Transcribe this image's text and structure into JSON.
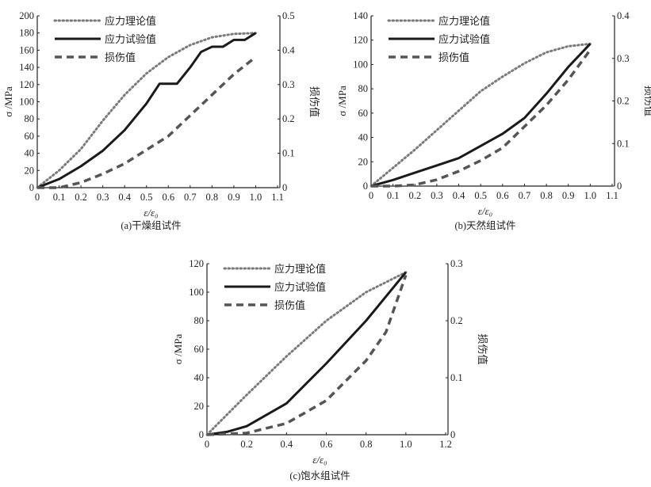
{
  "legend": {
    "theory": "应力理论值",
    "experiment": "应力试验值",
    "damage": "损伤值"
  },
  "colors": {
    "theory": "#7a7a7a",
    "experiment": "#1a1a1a",
    "damage": "#555555"
  },
  "chart_data": [
    {
      "type": "line",
      "title": "(a)干燥组试件",
      "xlabel": "ε/ε₀",
      "ylabel": "σ /MPa",
      "y2label": "损伤值",
      "xlim": [
        0,
        1.1
      ],
      "xticks": [
        "0",
        "0.1",
        "0.2",
        "0.3",
        "0.4",
        "0.5",
        "0.6",
        "0.7",
        "0.8",
        "0.9",
        "1.0",
        "1.1"
      ],
      "xstep": 0.1,
      "ylim": [
        0,
        200
      ],
      "yticks": [
        "0",
        "20",
        "40",
        "60",
        "80",
        "100",
        "120",
        "140",
        "160",
        "180",
        "200"
      ],
      "y2lim": [
        0,
        0.5
      ],
      "y2ticks": [
        "0",
        "0.1",
        "0.2",
        "0.3",
        "0.4",
        "0.5"
      ],
      "series": [
        {
          "name": "应力理论值",
          "axis": "left",
          "x": [
            0,
            0.1,
            0.2,
            0.3,
            0.4,
            0.5,
            0.6,
            0.7,
            0.8,
            0.9,
            1.0
          ],
          "y": [
            0,
            20,
            45,
            78,
            108,
            133,
            152,
            166,
            175,
            179,
            180
          ]
        },
        {
          "name": "应力试验值",
          "axis": "left",
          "x": [
            0,
            0.1,
            0.2,
            0.3,
            0.4,
            0.5,
            0.56,
            0.64,
            0.7,
            0.75,
            0.8,
            0.85,
            0.9,
            0.95,
            1.0
          ],
          "y": [
            0,
            10,
            25,
            43,
            67,
            98,
            121,
            121,
            140,
            158,
            164,
            164,
            172,
            172,
            180
          ]
        },
        {
          "name": "损伤值",
          "axis": "right",
          "x": [
            0,
            0.1,
            0.2,
            0.3,
            0.4,
            0.5,
            0.6,
            0.7,
            0.8,
            0.9,
            1.0
          ],
          "y": [
            0,
            0,
            0.015,
            0.04,
            0.07,
            0.11,
            0.15,
            0.21,
            0.27,
            0.33,
            0.38
          ]
        }
      ]
    },
    {
      "type": "line",
      "title": "(b)天然组试件",
      "xlabel": "ε/ε₀",
      "ylabel": "σ /MPa",
      "y2label": "损伤值",
      "xlim": [
        0,
        1.1
      ],
      "xticks": [
        "0",
        "0.1",
        "0.2",
        "0.3",
        "0.4",
        "0.5",
        "0.6",
        "0.7",
        "0.8",
        "0.9",
        "1.0",
        "1.1"
      ],
      "xstep": 0.1,
      "ylim": [
        0,
        140
      ],
      "yticks": [
        "0",
        "20",
        "40",
        "60",
        "80",
        "100",
        "120",
        "140"
      ],
      "y2lim": [
        0,
        0.4
      ],
      "y2ticks": [
        "0",
        "0.1",
        "0.2",
        "0.3",
        "0.4"
      ],
      "series": [
        {
          "name": "应力理论值",
          "axis": "left",
          "x": [
            0,
            0.1,
            0.2,
            0.3,
            0.4,
            0.5,
            0.6,
            0.7,
            0.8,
            0.9,
            1.0
          ],
          "y": [
            0,
            15,
            30,
            46,
            62,
            78,
            90,
            101,
            110,
            115,
            117
          ]
        },
        {
          "name": "应力试验值",
          "axis": "left",
          "x": [
            0,
            0.1,
            0.2,
            0.3,
            0.4,
            0.5,
            0.6,
            0.7,
            0.8,
            0.9,
            1.0
          ],
          "y": [
            0,
            5,
            11,
            17,
            23,
            33,
            43,
            56,
            76,
            98,
            117
          ]
        },
        {
          "name": "损伤值",
          "axis": "right",
          "x": [
            0,
            0.1,
            0.2,
            0.3,
            0.4,
            0.5,
            0.6,
            0.7,
            0.8,
            0.9,
            1.0
          ],
          "y": [
            0,
            0,
            0.003,
            0.015,
            0.035,
            0.06,
            0.09,
            0.14,
            0.19,
            0.25,
            0.32
          ]
        }
      ]
    },
    {
      "type": "line",
      "title": "(c)饱水组试件",
      "xlabel": "ε/ε₀",
      "ylabel": "σ /MPa",
      "y2label": "损伤值",
      "xlim": [
        0,
        1.2
      ],
      "xticks": [
        "0",
        "0.2",
        "0.4",
        "0.6",
        "0.8",
        "1.0",
        "1.2"
      ],
      "xstep": 0.2,
      "ylim": [
        0,
        120
      ],
      "yticks": [
        "0",
        "20",
        "40",
        "60",
        "80",
        "100",
        "120"
      ],
      "y2lim": [
        0,
        0.3
      ],
      "y2ticks": [
        "0",
        "0.1",
        "0.2",
        "0.3"
      ],
      "series": [
        {
          "name": "应力理论值",
          "axis": "left",
          "x": [
            0,
            0.2,
            0.4,
            0.6,
            0.8,
            1.0
          ],
          "y": [
            0,
            28,
            55,
            80,
            100,
            114
          ]
        },
        {
          "name": "应力试验值",
          "axis": "left",
          "x": [
            0,
            0.1,
            0.2,
            0.4,
            0.6,
            0.8,
            1.0
          ],
          "y": [
            0,
            2,
            6,
            22,
            50,
            80,
            114
          ]
        },
        {
          "name": "损伤值",
          "axis": "right",
          "x": [
            0,
            0.2,
            0.4,
            0.6,
            0.8,
            0.9,
            1.0
          ],
          "y": [
            0,
            0.003,
            0.02,
            0.06,
            0.13,
            0.18,
            0.28
          ]
        }
      ]
    }
  ]
}
